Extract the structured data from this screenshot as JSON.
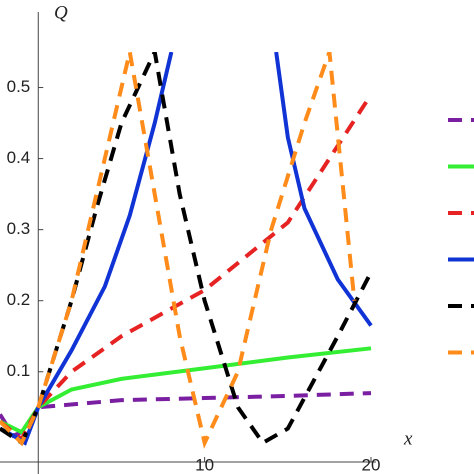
{
  "chart_data": {
    "type": "line",
    "x_label": "x",
    "y_label": "Q",
    "xlim": [
      -2.3,
      20.3
    ],
    "ylim": [
      -0.027,
      0.55
    ],
    "xticks": [
      10,
      20
    ],
    "yticks": [
      0.1,
      0.2,
      0.3,
      0.4,
      0.5
    ],
    "dashed": [
      true,
      false,
      true,
      false,
      true,
      true
    ],
    "series": [
      {
        "color": "#7b1fa2",
        "x": [
          -2.3,
          -1.5,
          -0.5,
          0,
          5,
          10,
          15,
          20
        ],
        "values": [
          0.04,
          0.01,
          0.02,
          0.05,
          0.06,
          0.063,
          0.066,
          0.07
        ]
      },
      {
        "color": "#33ee33",
        "x": [
          -2.3,
          -1,
          0,
          2,
          5,
          10,
          15,
          20
        ],
        "values": [
          0.03,
          0.015,
          0.05,
          0.075,
          0.09,
          0.105,
          0.12,
          0.133
        ]
      },
      {
        "color": "#e62222",
        "x": [
          -2.3,
          -1,
          0,
          2,
          5,
          10,
          15,
          20
        ],
        "values": [
          0.03,
          0.005,
          0.05,
          0.1,
          0.15,
          0.215,
          0.31,
          0.49
        ]
      },
      {
        "color": "#1033d6",
        "x": [
          -2.3,
          -1.5,
          -0.8,
          0,
          2,
          4,
          5.5,
          7,
          8,
          11,
          14.3,
          15,
          16,
          18,
          20
        ],
        "values": [
          0.02,
          0.01,
          0.0,
          0.05,
          0.13,
          0.22,
          0.32,
          0.45,
          0.55,
          null,
          0.55,
          0.43,
          0.33,
          0.23,
          0.165
        ]
      },
      {
        "color": "#000000",
        "x": [
          -2.3,
          -1,
          0,
          2,
          3.5,
          5,
          7,
          8.5,
          10,
          12,
          13.5,
          15,
          18,
          20
        ],
        "values": [
          0.02,
          0.0,
          0.05,
          0.2,
          0.33,
          0.45,
          0.55,
          0.35,
          0.2,
          0.05,
          0.0,
          0.02,
          0.15,
          0.24
        ]
      },
      {
        "color": "#ff8c1a",
        "x": [
          -2.3,
          -1,
          0,
          2,
          4,
          5.5,
          7,
          8.5,
          10,
          12,
          14,
          16,
          17.5,
          19
        ],
        "values": [
          0.03,
          0.0,
          0.05,
          0.2,
          0.4,
          0.55,
          0.35,
          0.15,
          0.0,
          0.1,
          0.3,
          0.45,
          0.55,
          0.2
        ]
      }
    ]
  }
}
